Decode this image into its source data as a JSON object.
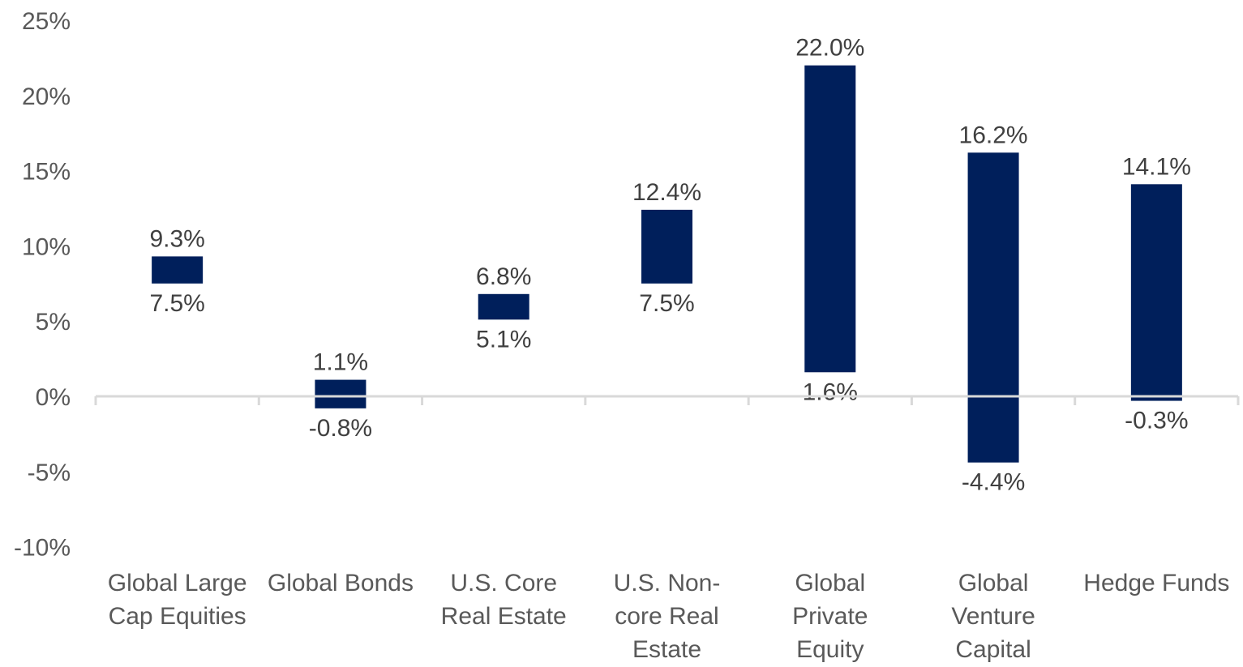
{
  "chart_data": {
    "type": "bar",
    "subtype": "floating-range",
    "title": "",
    "xlabel": "",
    "ylabel": "",
    "ylim": [
      -10,
      25
    ],
    "y_ticks": [
      "25%",
      "20%",
      "15%",
      "10%",
      "5%",
      "0%",
      "-5%",
      "-10%"
    ],
    "y_tick_values": [
      25,
      20,
      15,
      10,
      5,
      0,
      -5,
      -10
    ],
    "grid": false,
    "categories": [
      [
        "Global Large",
        "Cap Equities"
      ],
      [
        "Global Bonds"
      ],
      [
        "U.S. Core",
        "Real Estate"
      ],
      [
        "U.S. Non-",
        "core Real",
        "Estate"
      ],
      [
        "Global",
        "Private",
        "Equity"
      ],
      [
        "Global",
        "Venture",
        "Capital"
      ],
      [
        "Hedge Funds"
      ]
    ],
    "low": [
      7.5,
      -0.8,
      5.1,
      7.5,
      1.6,
      -4.4,
      -0.3
    ],
    "high": [
      9.3,
      1.1,
      6.8,
      12.4,
      22.0,
      16.2,
      14.1
    ],
    "low_labels": [
      "7.5%",
      "-0.8%",
      "5.1%",
      "7.5%",
      "1.6%",
      "-4.4%",
      "-0.3%"
    ],
    "high_labels": [
      "9.3%",
      "1.1%",
      "6.8%",
      "12.4%",
      "22.0%",
      "16.2%",
      "14.1%"
    ],
    "colors": {
      "bar": "#001f5b",
      "axis": "#d9d9d9",
      "text": "#595959"
    }
  }
}
